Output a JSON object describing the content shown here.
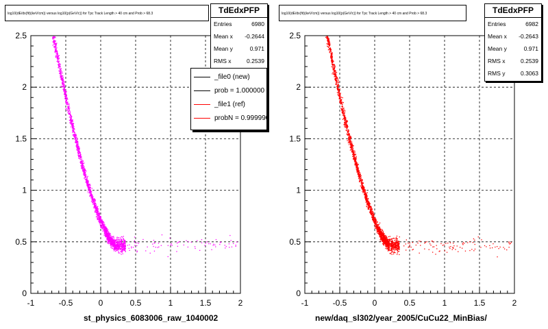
{
  "footer_text": "",
  "chart_data": [
    {
      "type": "scatter",
      "title": "log10(dE/dx(fit)(keV/cm)) versus log10(p(GeV/c)) for Tpc Track Length > 40 cm and Prob > 68.3",
      "xlabel": "st_physics_6083006_raw_1040002",
      "ylabel": "",
      "xlim": [
        -1,
        2
      ],
      "ylim": [
        0,
        2.5
      ],
      "xticks": [
        "-1",
        "-0.5",
        "0",
        "0.5",
        "1",
        "1.5",
        "2"
      ],
      "yticks": [
        "0",
        "0.5",
        "1",
        "1.5",
        "2",
        "2.5"
      ],
      "grid": true,
      "series": [
        {
          "name": "",
          "color": "#ff00ff"
        }
      ],
      "stats": {
        "name": "TdEdxPFP",
        "rows": [
          {
            "label": "Entries",
            "value": "6980"
          },
          {
            "label": "Mean x",
            "value": "-0.2644"
          },
          {
            "label": "Mean y",
            "value": "0.971"
          },
          {
            "label": "RMS x",
            "value": "0.2539"
          }
        ]
      },
      "legend": {
        "placement": "top-right",
        "entries": [
          {
            "label": "_file0 (new)",
            "color": "#000000"
          },
          {
            "label": "prob = 1.000000",
            "color": "#000000"
          },
          {
            "label": "_file1 (ref)",
            "color": "#ff0000"
          },
          {
            "label": "probN = 0.999990",
            "color": "#ff0000"
          }
        ]
      }
    },
    {
      "type": "scatter",
      "title": "log10(dE/dx(fit)(keV/cm)) versus log10(p(GeV/c)) for Tpc Track Length > 40 cm and Prob > 68.3",
      "xlabel": "new/daq_sl302/year_2005/CuCu22_MinBias/",
      "ylabel": "",
      "xlim": [
        -1,
        2
      ],
      "ylim": [
        0,
        2.5
      ],
      "xticks": [
        "-1",
        "-0.5",
        "0",
        "0.5",
        "1",
        "1.5",
        "2"
      ],
      "yticks": [
        "0",
        "0.5",
        "1",
        "1.5",
        "2",
        "2.5"
      ],
      "grid": true,
      "series": [
        {
          "name": "",
          "color": "#ff0000"
        }
      ],
      "stats": {
        "name": "TdEdxPFP",
        "rows": [
          {
            "label": "Entries",
            "value": "6982"
          },
          {
            "label": "Mean x",
            "value": "-0.2643"
          },
          {
            "label": "Mean y",
            "value": "0.971"
          },
          {
            "label": "RMS x",
            "value": "0.2539"
          },
          {
            "label": "RMS y",
            "value": "0.3063"
          }
        ]
      }
    }
  ]
}
